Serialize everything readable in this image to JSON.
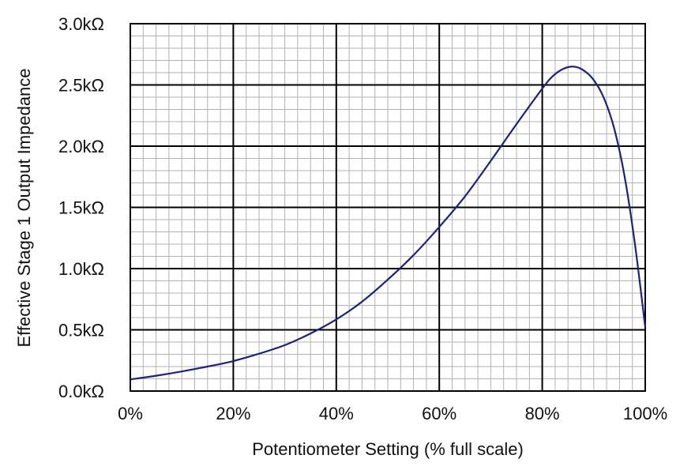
{
  "chart_data": {
    "type": "line",
    "title": "",
    "xlabel": "Potentiometer Setting (% full scale)",
    "ylabel": "Effective Stage 1 Output Impedance",
    "xlim": [
      0,
      100
    ],
    "ylim": [
      0,
      3000
    ],
    "x_ticks": [
      0,
      20,
      40,
      60,
      80,
      100
    ],
    "x_tick_labels": [
      "0%",
      "20%",
      "40%",
      "60%",
      "80%",
      "100%"
    ],
    "y_ticks": [
      0,
      500,
      1000,
      1500,
      2000,
      2500,
      3000
    ],
    "y_tick_labels": [
      "0.0kΩ",
      "0.5kΩ",
      "1.0kΩ",
      "1.5kΩ",
      "2.0kΩ",
      "2.5kΩ",
      "3.0kΩ"
    ],
    "grid": {
      "major": true,
      "minor": true,
      "x_minor_step": 2.5,
      "y_minor_step": 100
    },
    "legend": "none",
    "series": [
      {
        "color": "#1a237e",
        "x": [
          0,
          5,
          10,
          15,
          20,
          25,
          30,
          35,
          40,
          45,
          50,
          55,
          60,
          65,
          70,
          75,
          80,
          82,
          84,
          86,
          88,
          90,
          92,
          94,
          96,
          98,
          100
        ],
        "y": [
          95,
          125,
          160,
          200,
          245,
          305,
          375,
          470,
          585,
          730,
          910,
          1110,
          1340,
          1590,
          1880,
          2180,
          2470,
          2570,
          2630,
          2650,
          2620,
          2540,
          2390,
          2140,
          1750,
          1200,
          520
        ]
      }
    ]
  }
}
